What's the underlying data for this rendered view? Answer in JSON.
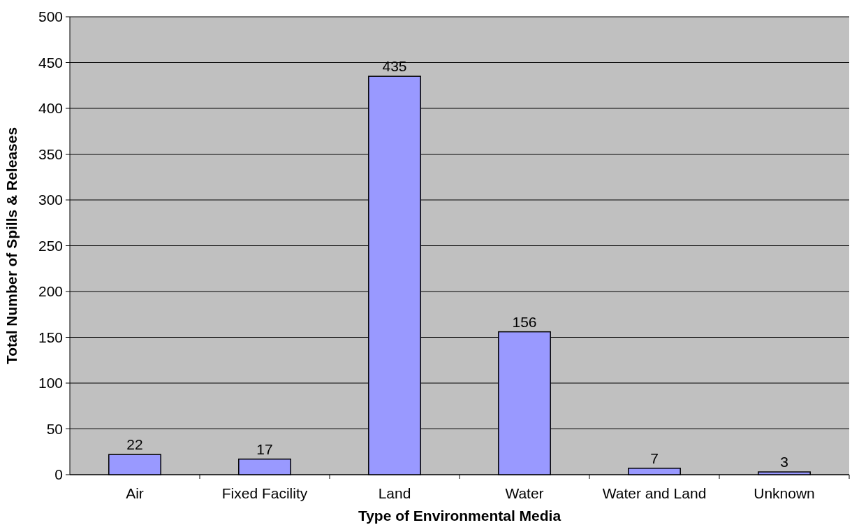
{
  "chart_data": {
    "type": "bar",
    "xlabel": "Type of Environmental Media",
    "ylabel": "Total Number of Spills & Releases",
    "categories": [
      "Air",
      "Fixed Facility",
      "Land",
      "Water",
      "Water and Land",
      "Unknown"
    ],
    "values": [
      22,
      17,
      435,
      156,
      7,
      3
    ],
    "color": "#9999ff",
    "ylim": [
      0,
      500
    ],
    "yticks": [
      0,
      50,
      100,
      150,
      200,
      250,
      300,
      350,
      400,
      450,
      500
    ],
    "grid": "y",
    "data_labels": true
  }
}
